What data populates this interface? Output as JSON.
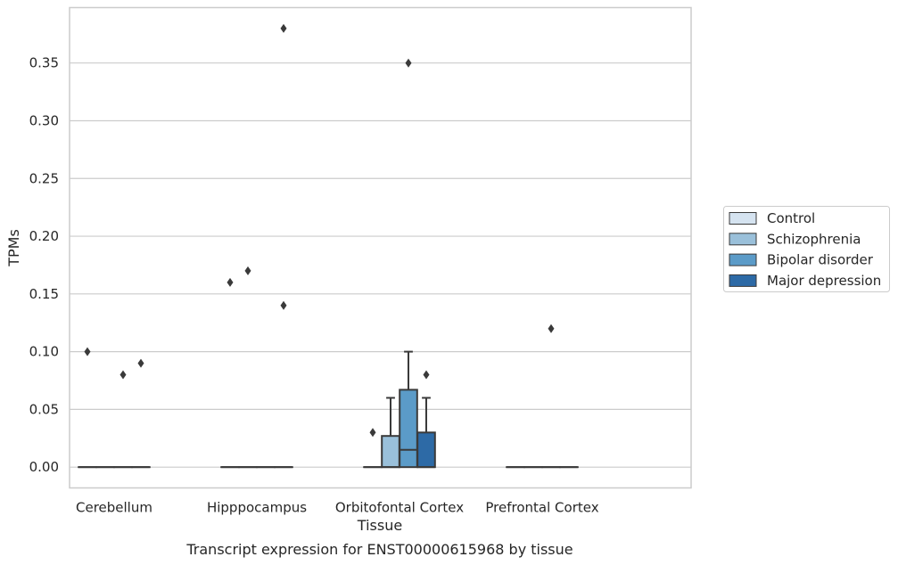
{
  "chart_data": {
    "type": "box",
    "title": "",
    "caption": "Transcript expression for ENST00000615968 by tissue",
    "xlabel": "Tissue",
    "ylabel": "TPMs",
    "ylim": [
      -0.018,
      0.398
    ],
    "yticks": [
      "0.00",
      "0.05",
      "0.10",
      "0.15",
      "0.20",
      "0.25",
      "0.30",
      "0.35"
    ],
    "grid": "horizontal",
    "legend_position": "right",
    "categories": [
      "Cerebellum",
      "Hipppocampus",
      "Orbitofontal Cortex",
      "Prefrontal Cortex"
    ],
    "series": [
      {
        "name": "Control",
        "color": "#d5e3f0",
        "boxes": [
          {
            "min": 0,
            "q1": 0,
            "median": 0,
            "q3": 0,
            "max": 0,
            "outliers": [
              0.1
            ]
          },
          {
            "min": 0,
            "q1": 0,
            "median": 0,
            "q3": 0,
            "max": 0,
            "outliers": [
              0.16
            ]
          },
          {
            "min": 0,
            "q1": 0,
            "median": 0,
            "q3": 0,
            "max": 0,
            "outliers": [
              0.03
            ]
          },
          {
            "min": 0,
            "q1": 0,
            "median": 0,
            "q3": 0,
            "max": 0,
            "outliers": []
          }
        ]
      },
      {
        "name": "Schizophrenia",
        "color": "#9ac0da",
        "boxes": [
          {
            "min": 0,
            "q1": 0,
            "median": 0,
            "q3": 0,
            "max": 0,
            "outliers": []
          },
          {
            "min": 0,
            "q1": 0,
            "median": 0,
            "q3": 0,
            "max": 0,
            "outliers": [
              0.17
            ]
          },
          {
            "min": 0,
            "q1": 0,
            "median": 0,
            "q3": 0.027,
            "max": 0.06,
            "outliers": []
          },
          {
            "min": 0,
            "q1": 0,
            "median": 0,
            "q3": 0,
            "max": 0,
            "outliers": []
          }
        ]
      },
      {
        "name": "Bipolar disorder",
        "color": "#5b9bc8",
        "boxes": [
          {
            "min": 0,
            "q1": 0,
            "median": 0,
            "q3": 0,
            "max": 0,
            "outliers": [
              0.08
            ]
          },
          {
            "min": 0,
            "q1": 0,
            "median": 0,
            "q3": 0,
            "max": 0,
            "outliers": []
          },
          {
            "min": 0,
            "q1": 0,
            "median": 0.015,
            "q3": 0.067,
            "max": 0.1,
            "outliers": [
              0.35
            ]
          },
          {
            "min": 0,
            "q1": 0,
            "median": 0,
            "q3": 0,
            "max": 0,
            "outliers": [
              0.12
            ]
          }
        ]
      },
      {
        "name": "Major depression",
        "color": "#2d6aa6",
        "boxes": [
          {
            "min": 0,
            "q1": 0,
            "median": 0,
            "q3": 0,
            "max": 0,
            "outliers": [
              0.09
            ]
          },
          {
            "min": 0,
            "q1": 0,
            "median": 0,
            "q3": 0,
            "max": 0,
            "outliers": [
              0.38,
              0.14
            ]
          },
          {
            "min": 0,
            "q1": 0,
            "median": 0,
            "q3": 0.03,
            "max": 0.06,
            "outliers": [
              0.08
            ]
          },
          {
            "min": 0,
            "q1": 0,
            "median": 0,
            "q3": 0,
            "max": 0,
            "outliers": []
          }
        ]
      }
    ]
  }
}
